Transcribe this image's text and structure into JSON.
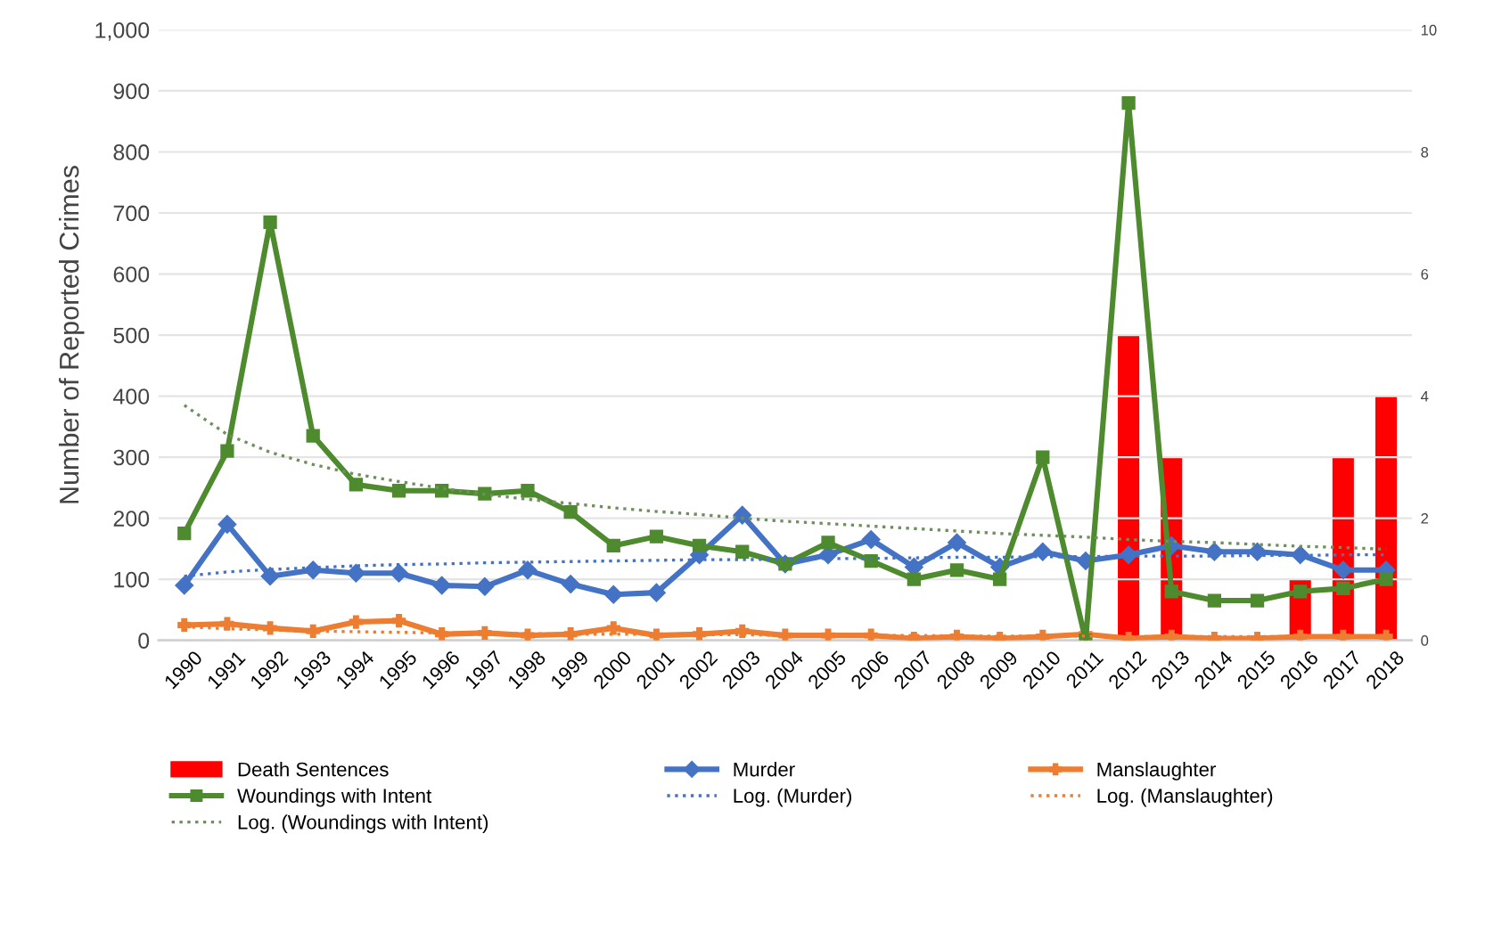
{
  "chart_data": {
    "type": "line",
    "ylabel": "Number of Reported Crimes",
    "categories": [
      "1990",
      "1991",
      "1992",
      "1993",
      "1994",
      "1995",
      "1996",
      "1997",
      "1998",
      "1999",
      "2000",
      "2001",
      "2002",
      "2003",
      "2004",
      "2005",
      "2006",
      "2007",
      "2008",
      "2009",
      "2010",
      "2011",
      "2012",
      "2013",
      "2014",
      "2015",
      "2016",
      "2017",
      "2018"
    ],
    "series": [
      {
        "name": "Death Sentences",
        "type": "bar",
        "axis": "y2",
        "color": "#ff0000",
        "values": [
          0,
          0,
          0,
          0,
          0,
          0,
          0,
          0,
          0,
          0,
          0,
          0,
          0,
          0,
          0,
          0,
          0,
          0,
          0,
          0,
          0,
          0,
          5,
          3,
          0,
          0,
          1,
          3,
          4
        ]
      },
      {
        "name": "Murder",
        "color": "#4472c4",
        "marker": "diamond",
        "line_style": "solid",
        "values": [
          90,
          190,
          105,
          115,
          110,
          110,
          90,
          88,
          115,
          92,
          75,
          78,
          140,
          205,
          125,
          140,
          165,
          120,
          160,
          120,
          145,
          130,
          140,
          155,
          145,
          145,
          140,
          115,
          115
        ]
      },
      {
        "name": "Manslaughter",
        "color": "#ed7d31",
        "marker": "cross",
        "line_style": "solid",
        "values": [
          25,
          27,
          20,
          15,
          30,
          32,
          10,
          12,
          8,
          10,
          20,
          8,
          10,
          15,
          8,
          8,
          8,
          3,
          6,
          3,
          6,
          10,
          3,
          6,
          3,
          3,
          6,
          6,
          6
        ]
      },
      {
        "name": "Woundings with Intent",
        "color": "#4e8a2e",
        "marker": "square",
        "line_style": "solid",
        "values": [
          175,
          310,
          685,
          335,
          255,
          245,
          245,
          240,
          245,
          210,
          155,
          170,
          155,
          145,
          125,
          160,
          130,
          100,
          115,
          100,
          300,
          0,
          880,
          80,
          65,
          65,
          80,
          85,
          100
        ]
      },
      {
        "name": "Log. (Murder)",
        "color": "#4472c4",
        "marker": "none",
        "line_style": "dotted",
        "values": [
          105,
          112,
          116,
          119,
          122,
          124,
          125,
          127,
          128,
          129,
          130,
          131,
          132,
          132,
          133,
          134,
          134,
          135,
          136,
          136,
          137,
          137,
          138,
          138,
          138,
          139,
          139,
          140,
          140
        ]
      },
      {
        "name": "Log. (Manslaughter)",
        "color": "#ed7d31",
        "marker": "none",
        "line_style": "dotted",
        "values": [
          22,
          19,
          17,
          15,
          14,
          13,
          12,
          12,
          11,
          10,
          10,
          10,
          9,
          9,
          8,
          8,
          8,
          8,
          7,
          7,
          7,
          7,
          6,
          6,
          6,
          6,
          6,
          5,
          5
        ]
      },
      {
        "name": "Log. (Woundings with Intent)",
        "color": "#6e8f5e",
        "marker": "none",
        "line_style": "dotted",
        "values": [
          385,
          337,
          308,
          288,
          272,
          260,
          249,
          239,
          231,
          224,
          217,
          211,
          206,
          200,
          195,
          191,
          187,
          183,
          179,
          175,
          172,
          169,
          165,
          162,
          160,
          157,
          154,
          152,
          149
        ]
      }
    ],
    "ylim": [
      0,
      1000
    ],
    "yticks": [
      0,
      100,
      200,
      300,
      400,
      500,
      600,
      700,
      800,
      900,
      {
        "value": 1000,
        "label": "1,000"
      }
    ],
    "y2lim": [
      0,
      10
    ],
    "y2ticks": [
      0,
      2,
      4,
      6,
      8,
      10
    ],
    "grid": "y",
    "legend": "bottom"
  }
}
